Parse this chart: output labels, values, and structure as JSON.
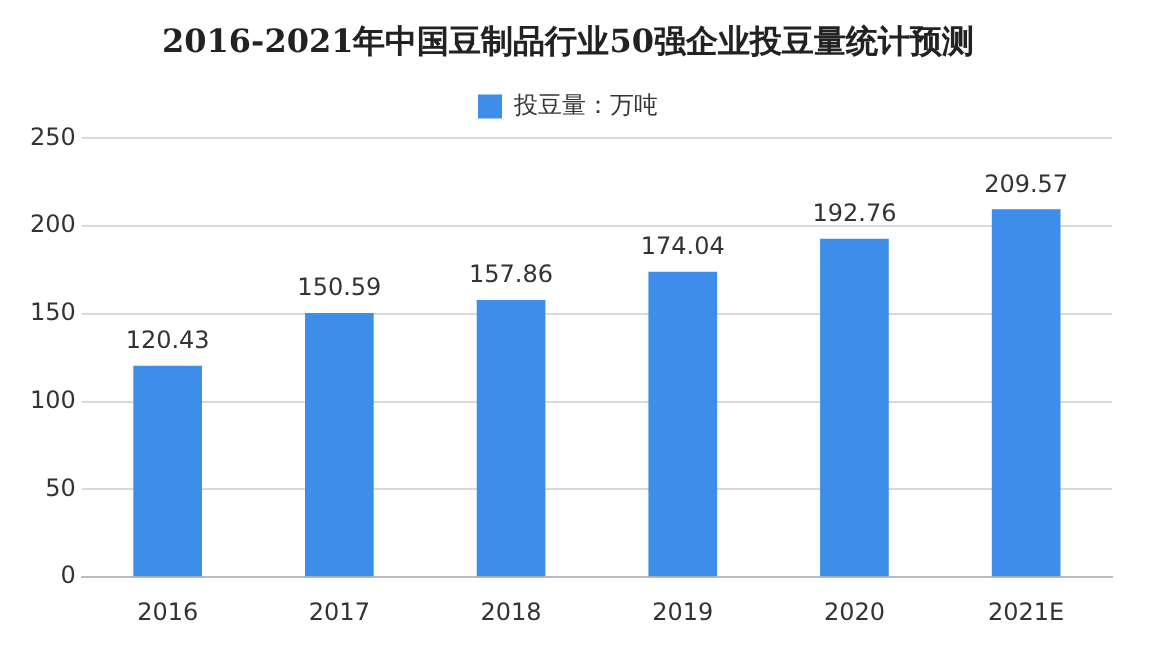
{
  "chart_data": {
    "type": "bar",
    "title": "2016-2021年中国豆制品行业50强企业投豆量统计预测",
    "categories": [
      "2016",
      "2017",
      "2018",
      "2019",
      "2020",
      "2021E"
    ],
    "series": [
      {
        "name": "投豆量：万吨",
        "color": "#3d8ee8",
        "values": [
          120.43,
          150.59,
          157.86,
          174.04,
          192.76,
          209.57
        ]
      }
    ],
    "ylim": [
      0,
      250
    ],
    "yticks": [
      0,
      50,
      100,
      150,
      200,
      250
    ],
    "grid": "y",
    "legend": "top",
    "data_labels": true
  }
}
